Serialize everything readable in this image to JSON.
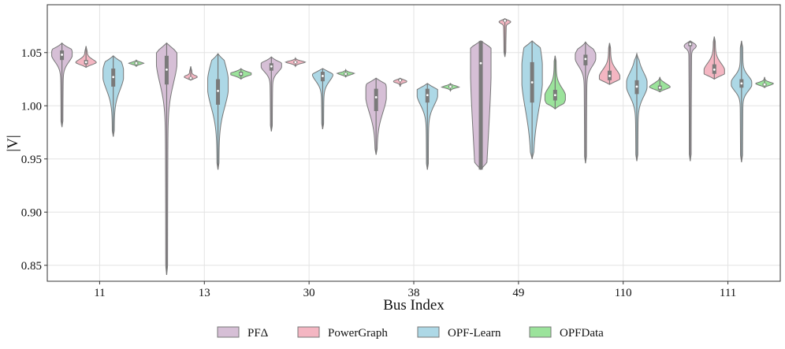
{
  "chart_data": {
    "type": "violin",
    "xlabel": "Bus Index",
    "ylabel": "|V|",
    "ylim": [
      0.835,
      1.095
    ],
    "yticks": [
      0.85,
      0.9,
      0.95,
      1.0,
      1.05
    ],
    "ytick_labels": [
      "0.85",
      "0.90",
      "0.95",
      "1.00",
      "1.05"
    ],
    "categories": [
      "11",
      "13",
      "30",
      "38",
      "49",
      "110",
      "111"
    ],
    "grid": true,
    "legend_position": "bottom-center",
    "series": [
      {
        "name": "PFΔ",
        "color": "#d6bfd6",
        "stats": [
          {
            "min": 0.98,
            "max": 1.059,
            "q1": 1.043,
            "median": 1.048,
            "q3": 1.052,
            "peak": 1.049
          },
          {
            "min": 0.841,
            "max": 1.059,
            "q1": 1.02,
            "median": 1.034,
            "q3": 1.047,
            "peak": 1.045
          },
          {
            "min": 0.976,
            "max": 1.046,
            "q1": 1.033,
            "median": 1.037,
            "q3": 1.04,
            "peak": 1.038
          },
          {
            "min": 0.954,
            "max": 1.026,
            "q1": 0.995,
            "median": 1.008,
            "q3": 1.016,
            "peak": 1.012
          },
          {
            "min": 0.94,
            "max": 1.061,
            "q1": 0.94,
            "median": 1.04,
            "q3": 1.061,
            "peak": 1.058
          },
          {
            "min": 0.946,
            "max": 1.06,
            "q1": 1.038,
            "median": 1.044,
            "q3": 1.048,
            "peak": 1.046
          },
          {
            "min": 0.948,
            "max": 1.061,
            "q1": 1.056,
            "median": 1.058,
            "q3": 1.06,
            "peak": 1.059
          }
        ]
      },
      {
        "name": "PowerGraph",
        "color": "#f4b6c2",
        "stats": [
          {
            "min": 1.036,
            "max": 1.056,
            "q1": 1.039,
            "median": 1.041,
            "q3": 1.043,
            "peak": 1.04
          },
          {
            "min": 1.024,
            "max": 1.037,
            "q1": 1.025,
            "median": 1.026,
            "q3": 1.027,
            "peak": 1.026
          },
          {
            "min": 1.037,
            "max": 1.045,
            "q1": 1.04,
            "median": 1.041,
            "q3": 1.042,
            "peak": 1.041
          },
          {
            "min": 1.018,
            "max": 1.026,
            "q1": 1.023,
            "median": 1.024,
            "q3": 1.025,
            "peak": 1.024
          },
          {
            "min": 1.046,
            "max": 1.082,
            "q1": 1.079,
            "median": 1.08,
            "q3": 1.081,
            "peak": 1.08
          },
          {
            "min": 1.02,
            "max": 1.059,
            "q1": 1.024,
            "median": 1.028,
            "q3": 1.033,
            "peak": 1.026
          },
          {
            "min": 1.025,
            "max": 1.065,
            "q1": 1.03,
            "median": 1.034,
            "q3": 1.039,
            "peak": 1.032
          }
        ]
      },
      {
        "name": "OPF-Learn",
        "color": "#add8e6",
        "stats": [
          {
            "min": 0.971,
            "max": 1.047,
            "q1": 1.018,
            "median": 1.027,
            "q3": 1.035,
            "peak": 1.03
          },
          {
            "min": 0.94,
            "max": 1.049,
            "q1": 1.001,
            "median": 1.014,
            "q3": 1.025,
            "peak": 1.02
          },
          {
            "min": 0.978,
            "max": 1.035,
            "q1": 1.023,
            "median": 1.028,
            "q3": 1.032,
            "peak": 1.031
          },
          {
            "min": 0.94,
            "max": 1.021,
            "q1": 1.003,
            "median": 1.01,
            "q3": 1.016,
            "peak": 1.012
          },
          {
            "min": 0.95,
            "max": 1.061,
            "q1": 1.003,
            "median": 1.022,
            "q3": 1.041,
            "peak": 1.03
          },
          {
            "min": 0.948,
            "max": 1.049,
            "q1": 1.011,
            "median": 1.018,
            "q3": 1.024,
            "peak": 1.02
          },
          {
            "min": 0.947,
            "max": 1.061,
            "q1": 1.017,
            "median": 1.021,
            "q3": 1.025,
            "peak": 1.021
          }
        ]
      },
      {
        "name": "OPFData",
        "color": "#9be39b",
        "stats": [
          {
            "min": 1.037,
            "max": 1.043,
            "q1": 1.039,
            "median": 1.04,
            "q3": 1.041,
            "peak": 1.04
          },
          {
            "min": 1.025,
            "max": 1.035,
            "q1": 1.028,
            "median": 1.03,
            "q3": 1.032,
            "peak": 1.03
          },
          {
            "min": 1.027,
            "max": 1.034,
            "q1": 1.029,
            "median": 1.03,
            "q3": 1.031,
            "peak": 1.03
          },
          {
            "min": 1.014,
            "max": 1.021,
            "q1": 1.017,
            "median": 1.018,
            "q3": 1.019,
            "peak": 1.018
          },
          {
            "min": 0.997,
            "max": 1.047,
            "q1": 1.005,
            "median": 1.01,
            "q3": 1.015,
            "peak": 1.008
          },
          {
            "min": 1.013,
            "max": 1.027,
            "q1": 1.015,
            "median": 1.017,
            "q3": 1.019,
            "peak": 1.017
          },
          {
            "min": 1.017,
            "max": 1.027,
            "q1": 1.019,
            "median": 1.02,
            "q3": 1.021,
            "peak": 1.02
          }
        ]
      }
    ]
  }
}
